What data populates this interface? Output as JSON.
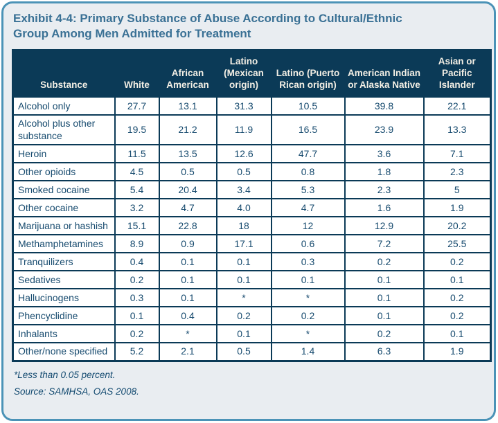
{
  "card": {
    "title": "Exhibit 4-4: Primary Substance of Abuse According to Cultural/Ethnic Group Among Men Admitted for Treatment",
    "footnote_asterisk": "*Less than 0.05 percent.",
    "footnote_source": "Source: SAMHSA, OAS 2008."
  },
  "chart_data": {
    "type": "table",
    "columns": [
      "Substance",
      "White",
      "African American",
      "Latino (Mexican origin)",
      "Latino (Puerto Rican origin)",
      "American Indian or Alaska Native",
      "Asian or Pacific Islander"
    ],
    "rows": [
      {
        "substance": "Alcohol only",
        "values": [
          "27.7",
          "13.1",
          "31.3",
          "10.5",
          "39.8",
          "22.1"
        ]
      },
      {
        "substance": "Alcohol plus other substance",
        "values": [
          "19.5",
          "21.2",
          "11.9",
          "16.5",
          "23.9",
          "13.3"
        ]
      },
      {
        "substance": "Heroin",
        "values": [
          "11.5",
          "13.5",
          "12.6",
          "47.7",
          "3.6",
          "7.1"
        ]
      },
      {
        "substance": "Other opioids",
        "values": [
          "4.5",
          "0.5",
          "0.5",
          "0.8",
          "1.8",
          "2.3"
        ]
      },
      {
        "substance": "Smoked cocaine",
        "values": [
          "5.4",
          "20.4",
          "3.4",
          "5.3",
          "2.3",
          "5"
        ]
      },
      {
        "substance": "Other cocaine",
        "values": [
          "3.2",
          "4.7",
          "4.0",
          "4.7",
          "1.6",
          "1.9"
        ]
      },
      {
        "substance": "Marijuana or hashish",
        "values": [
          "15.1",
          "22.8",
          "18",
          "12",
          "12.9",
          "20.2"
        ]
      },
      {
        "substance": "Methamphetamines",
        "values": [
          "8.9",
          "0.9",
          "17.1",
          "0.6",
          "7.2",
          "25.5"
        ]
      },
      {
        "substance": "Tranquilizers",
        "values": [
          "0.4",
          "0.1",
          "0.1",
          "0.3",
          "0.2",
          "0.2"
        ]
      },
      {
        "substance": "Sedatives",
        "values": [
          "0.2",
          "0.1",
          "0.1",
          "0.1",
          "0.1",
          "0.1"
        ]
      },
      {
        "substance": "Hallucinogens",
        "values": [
          "0.3",
          "0.1",
          "*",
          "*",
          "0.1",
          "0.2"
        ]
      },
      {
        "substance": "Phencyclidine",
        "values": [
          "0.1",
          "0.4",
          "0.2",
          "0.2",
          "0.1",
          "0.2"
        ]
      },
      {
        "substance": "Inhalants",
        "values": [
          "0.2",
          "*",
          "0.1",
          "*",
          "0.2",
          "0.1"
        ]
      },
      {
        "substance": "Other/none specified",
        "values": [
          "5.2",
          "2.1",
          "0.5",
          "1.4",
          "6.3",
          "1.9"
        ]
      }
    ],
    "footnote_marker_meaning": "*Less than 0.05 percent.",
    "source": "Source: SAMHSA, OAS 2008."
  },
  "colors": {
    "card_background": "#e9edf1",
    "card_border": "#4b93b7",
    "table_header_background": "#0b3a57",
    "table_header_text": "#f3efe5",
    "table_border": "#0b3a57",
    "table_text": "#164a6e",
    "title_text": "#3a7195",
    "footnote_text": "#134a70"
  }
}
